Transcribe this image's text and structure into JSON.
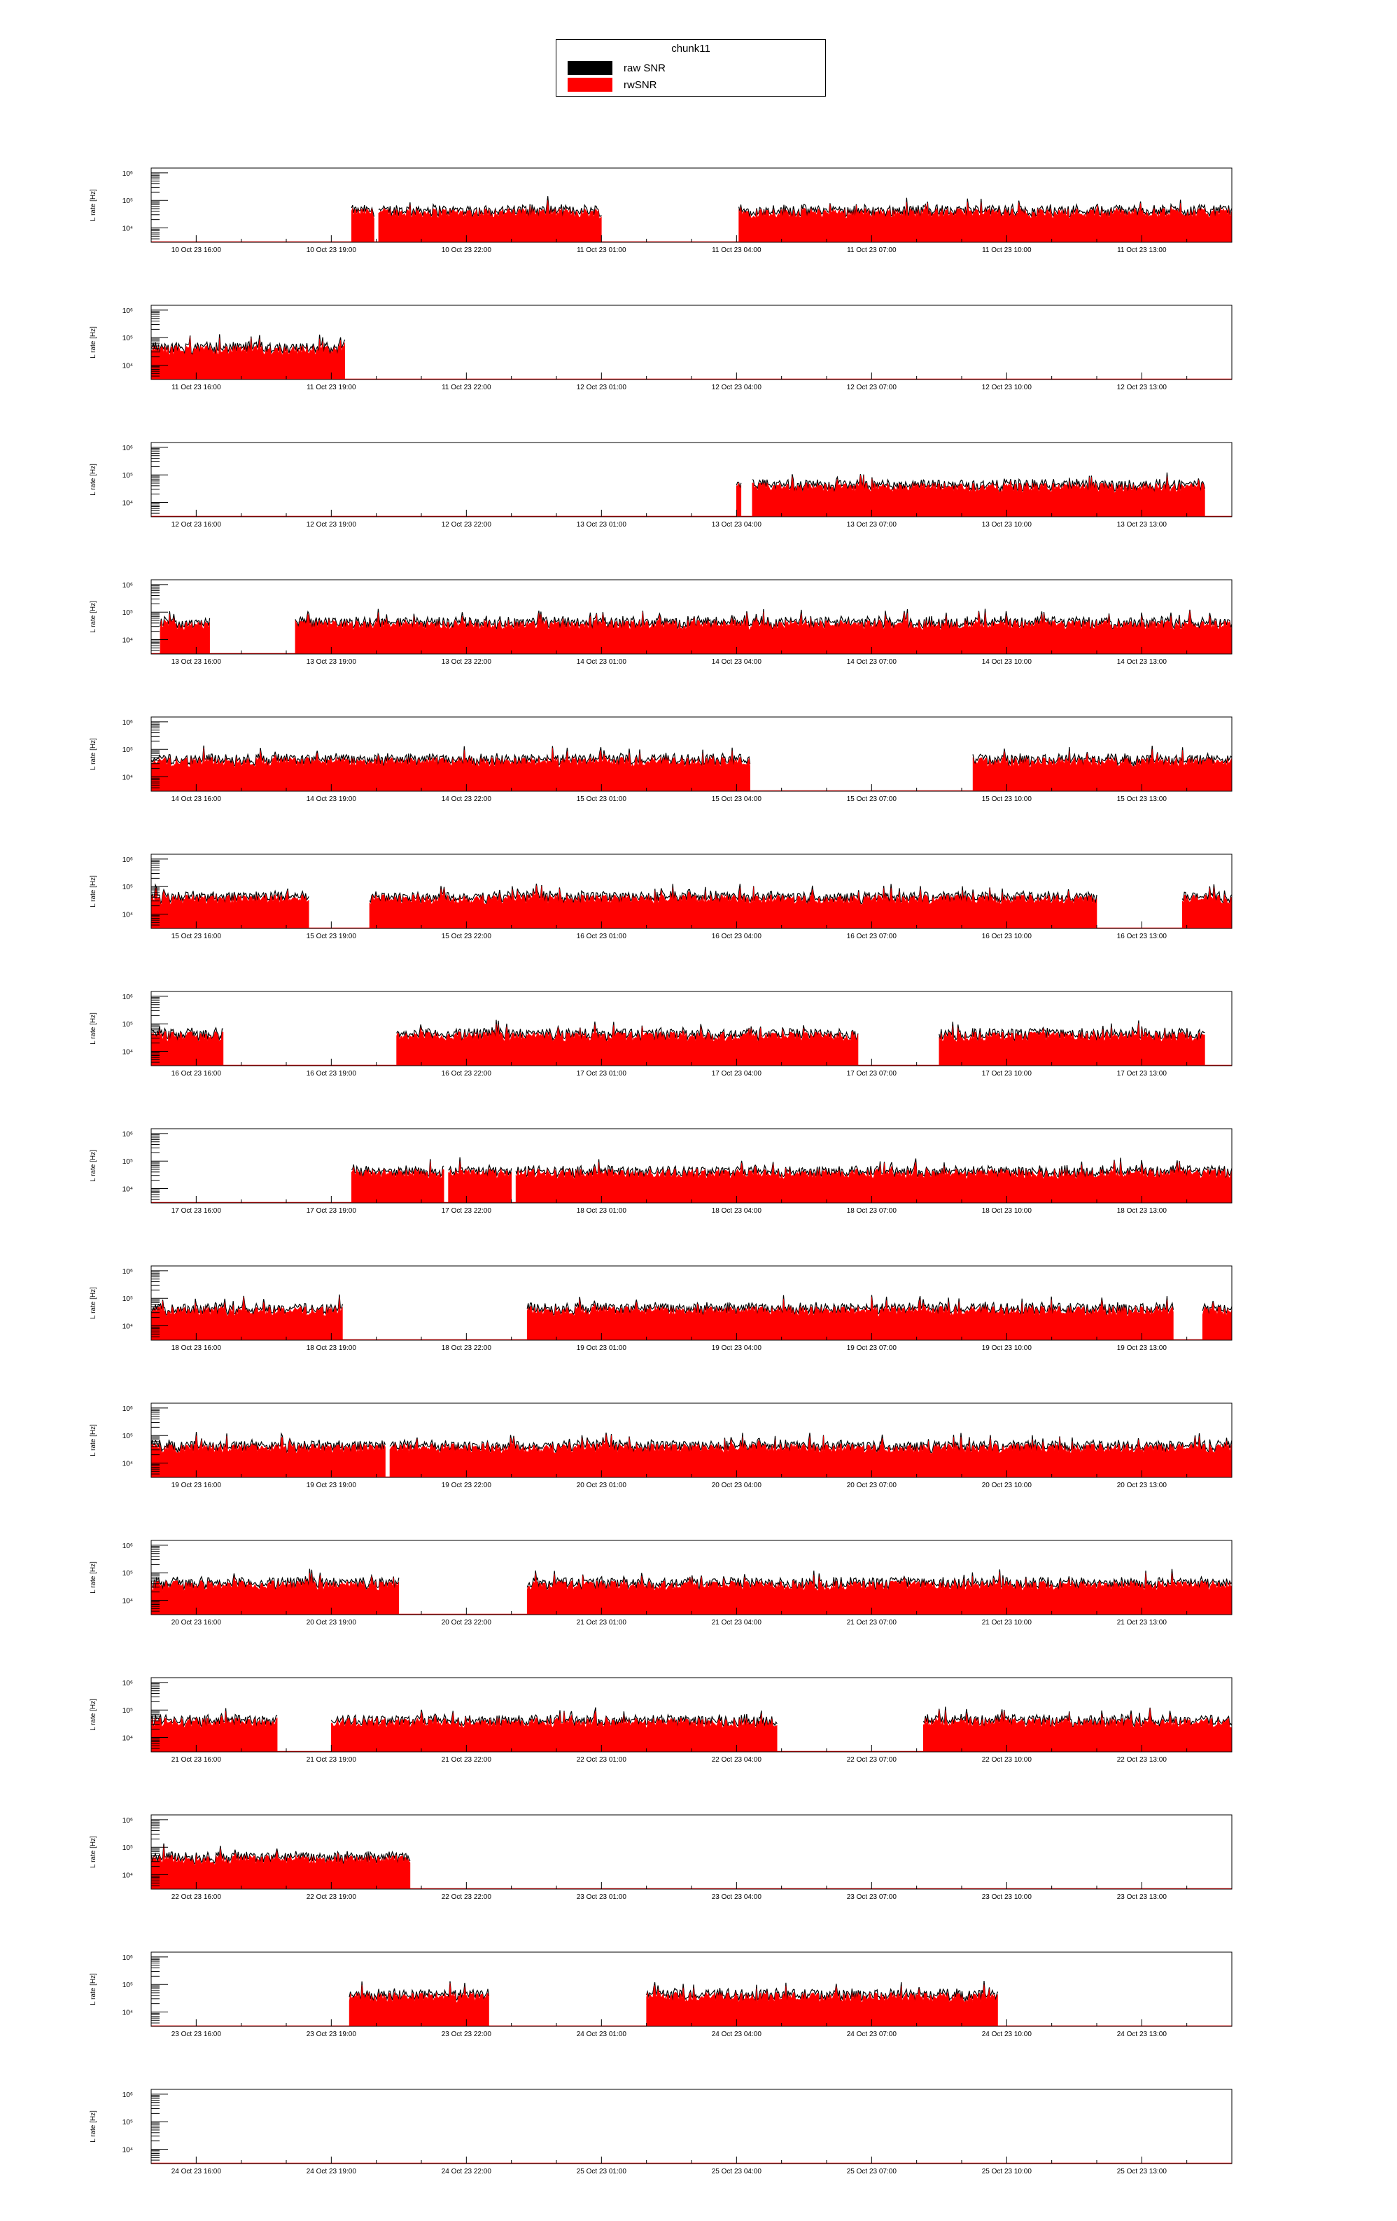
{
  "legend": {
    "title": "chunk11",
    "entries": [
      {
        "label": "raw SNR",
        "color": "#000000"
      },
      {
        "label": "rwSNR",
        "color": "#ff0000"
      }
    ]
  },
  "chart_data": {
    "type": "bar",
    "ylabel": "L rate [Hz]",
    "yscale": "log",
    "ytick_labels": [
      "10⁴",
      "10⁵",
      "10⁶"
    ],
    "ylim": [
      3000,
      1500000
    ],
    "series_names": [
      "raw SNR",
      "rwSNR"
    ],
    "colors": {
      "raw": "#000000",
      "rw": "#ff0000"
    },
    "x_span_hours": 24,
    "tick_hours": [
      1,
      4,
      7,
      10,
      13,
      16,
      19,
      22
    ],
    "typical_rate_hz": 40000,
    "panels": [
      {
        "xticks": [
          "10 Oct 23 16:00",
          "10 Oct 23 19:00",
          "10 Oct 23 22:00",
          "11 Oct 23 01:00",
          "11 Oct 23 04:00",
          "11 Oct 23 07:00",
          "11 Oct 23 10:00",
          "11 Oct 23 13:00"
        ],
        "segments": [
          [
            4.45,
            4.95
          ],
          [
            5.05,
            10.0
          ],
          [
            13.05,
            24.0
          ]
        ]
      },
      {
        "xticks": [
          "11 Oct 23 16:00",
          "11 Oct 23 19:00",
          "11 Oct 23 22:00",
          "12 Oct 23 01:00",
          "12 Oct 23 04:00",
          "12 Oct 23 07:00",
          "12 Oct 23 10:00",
          "12 Oct 23 13:00"
        ],
        "segments": [
          [
            0.0,
            4.3
          ]
        ]
      },
      {
        "xticks": [
          "12 Oct 23 16:00",
          "12 Oct 23 19:00",
          "12 Oct 23 22:00",
          "13 Oct 23 01:00",
          "13 Oct 23 04:00",
          "13 Oct 23 07:00",
          "13 Oct 23 10:00",
          "13 Oct 23 13:00"
        ],
        "segments": [
          [
            13.0,
            13.1
          ],
          [
            13.35,
            23.4
          ]
        ]
      },
      {
        "xticks": [
          "13 Oct 23 16:00",
          "13 Oct 23 19:00",
          "13 Oct 23 22:00",
          "14 Oct 23 01:00",
          "14 Oct 23 04:00",
          "14 Oct 23 07:00",
          "14 Oct 23 10:00",
          "14 Oct 23 13:00"
        ],
        "segments": [
          [
            0.2,
            1.3
          ],
          [
            3.2,
            24.0
          ]
        ]
      },
      {
        "xticks": [
          "14 Oct 23 16:00",
          "14 Oct 23 19:00",
          "14 Oct 23 22:00",
          "15 Oct 23 01:00",
          "15 Oct 23 04:00",
          "15 Oct 23 07:00",
          "15 Oct 23 10:00",
          "15 Oct 23 13:00"
        ],
        "segments": [
          [
            0.0,
            13.3
          ],
          [
            18.25,
            24.0
          ]
        ]
      },
      {
        "xticks": [
          "15 Oct 23 16:00",
          "15 Oct 23 19:00",
          "15 Oct 23 22:00",
          "16 Oct 23 01:00",
          "16 Oct 23 04:00",
          "16 Oct 23 07:00",
          "16 Oct 23 10:00",
          "16 Oct 23 13:00"
        ],
        "segments": [
          [
            0.0,
            3.5
          ],
          [
            4.85,
            21.0
          ],
          [
            22.9,
            24.0
          ]
        ]
      },
      {
        "xticks": [
          "16 Oct 23 16:00",
          "16 Oct 23 19:00",
          "16 Oct 23 22:00",
          "17 Oct 23 01:00",
          "17 Oct 23 04:00",
          "17 Oct 23 07:00",
          "17 Oct 23 10:00",
          "17 Oct 23 13:00"
        ],
        "segments": [
          [
            0.0,
            1.6
          ],
          [
            5.45,
            15.7
          ],
          [
            17.5,
            23.4
          ]
        ]
      },
      {
        "xticks": [
          "17 Oct 23 16:00",
          "17 Oct 23 19:00",
          "17 Oct 23 22:00",
          "18 Oct 23 01:00",
          "18 Oct 23 04:00",
          "18 Oct 23 07:00",
          "18 Oct 23 10:00",
          "18 Oct 23 13:00"
        ],
        "segments": [
          [
            4.45,
            6.5
          ],
          [
            6.6,
            8.0
          ],
          [
            8.1,
            24.0
          ]
        ]
      },
      {
        "xticks": [
          "18 Oct 23 16:00",
          "18 Oct 23 19:00",
          "18 Oct 23 22:00",
          "19 Oct 23 01:00",
          "19 Oct 23 04:00",
          "19 Oct 23 07:00",
          "19 Oct 23 10:00",
          "19 Oct 23 13:00"
        ],
        "segments": [
          [
            0.0,
            4.25
          ],
          [
            8.35,
            22.7
          ],
          [
            23.35,
            24.0
          ]
        ]
      },
      {
        "xticks": [
          "19 Oct 23 16:00",
          "19 Oct 23 19:00",
          "19 Oct 23 22:00",
          "20 Oct 23 01:00",
          "20 Oct 23 04:00",
          "20 Oct 23 07:00",
          "20 Oct 23 10:00",
          "20 Oct 23 13:00"
        ],
        "segments": [
          [
            0.0,
            5.2
          ],
          [
            5.3,
            24.0
          ]
        ]
      },
      {
        "xticks": [
          "20 Oct 23 16:00",
          "20 Oct 23 19:00",
          "20 Oct 23 22:00",
          "21 Oct 23 01:00",
          "21 Oct 23 04:00",
          "21 Oct 23 07:00",
          "21 Oct 23 10:00",
          "21 Oct 23 13:00"
        ],
        "segments": [
          [
            0.0,
            5.5
          ],
          [
            8.35,
            24.0
          ]
        ]
      },
      {
        "xticks": [
          "21 Oct 23 16:00",
          "21 Oct 23 19:00",
          "21 Oct 23 22:00",
          "22 Oct 23 01:00",
          "22 Oct 23 04:00",
          "22 Oct 23 07:00",
          "22 Oct 23 10:00",
          "22 Oct 23 13:00"
        ],
        "segments": [
          [
            0.0,
            2.8
          ],
          [
            4.0,
            13.9
          ],
          [
            17.15,
            24.0
          ]
        ]
      },
      {
        "xticks": [
          "22 Oct 23 16:00",
          "22 Oct 23 19:00",
          "22 Oct 23 22:00",
          "23 Oct 23 01:00",
          "23 Oct 23 04:00",
          "23 Oct 23 07:00",
          "23 Oct 23 10:00",
          "23 Oct 23 13:00"
        ],
        "segments": [
          [
            0.0,
            5.75
          ]
        ]
      },
      {
        "xticks": [
          "23 Oct 23 16:00",
          "23 Oct 23 19:00",
          "23 Oct 23 22:00",
          "24 Oct 23 01:00",
          "24 Oct 23 04:00",
          "24 Oct 23 07:00",
          "24 Oct 23 10:00",
          "24 Oct 23 13:00"
        ],
        "segments": [
          [
            4.4,
            7.5
          ],
          [
            11.0,
            18.8
          ]
        ]
      },
      {
        "xticks": [
          "24 Oct 23 16:00",
          "24 Oct 23 19:00",
          "24 Oct 23 22:00",
          "25 Oct 23 01:00",
          "25 Oct 23 04:00",
          "25 Oct 23 07:00",
          "25 Oct 23 10:00",
          "25 Oct 23 13:00"
        ],
        "segments": []
      }
    ]
  }
}
